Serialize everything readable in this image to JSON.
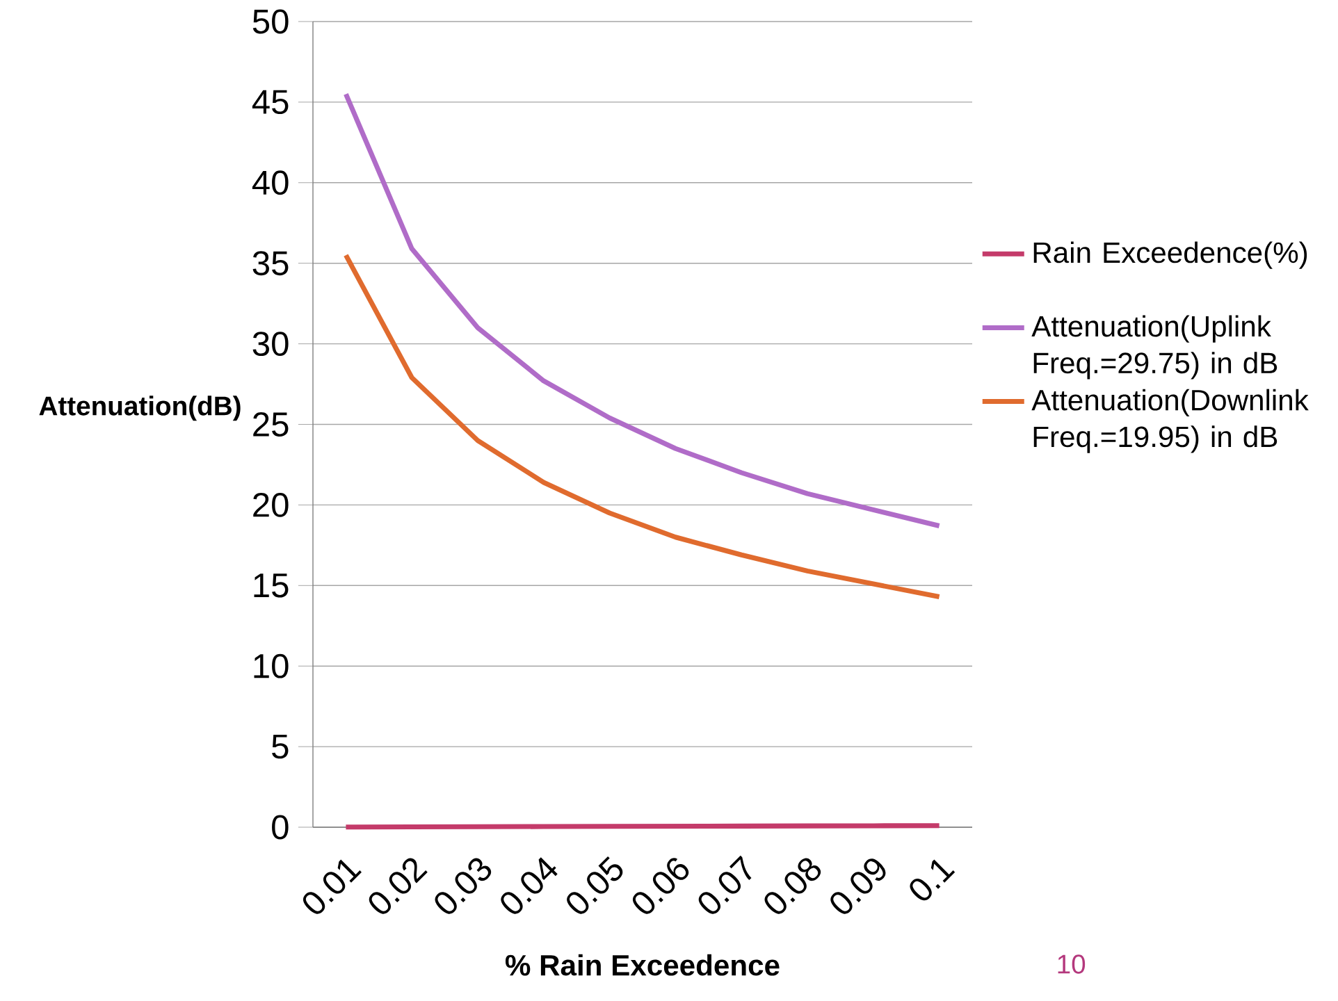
{
  "chart_data": {
    "type": "line",
    "xlabel": "% Rain Exceedence",
    "ylabel": "Attenuation(dB)",
    "categories": [
      "0.01",
      "0.02",
      "0.03",
      "0.04",
      "0.05",
      "0.06",
      "0.07",
      "0.08",
      "0.09",
      "0.1"
    ],
    "series": [
      {
        "name": "Rain Exceedence(%)",
        "color": "#c43b6a",
        "values": [
          0.01,
          0.02,
          0.03,
          0.04,
          0.05,
          0.06,
          0.07,
          0.08,
          0.09,
          0.1
        ]
      },
      {
        "name": "Attenuation(Uplink Freq.=29.75) in dB",
        "color": "#b06cc8",
        "values": [
          45.5,
          35.9,
          31.0,
          27.7,
          25.4,
          23.5,
          22.0,
          20.7,
          19.7,
          18.7
        ]
      },
      {
        "name": "Attenuation(Downlink Freq.=19.95) in dB",
        "color": "#e06b2e",
        "values": [
          35.5,
          27.9,
          24.0,
          21.4,
          19.5,
          18.0,
          16.9,
          15.9,
          15.1,
          14.3
        ]
      }
    ],
    "ylim": [
      0,
      50
    ],
    "yticks": [
      0,
      5,
      10,
      15,
      20,
      25,
      30,
      35,
      40,
      45,
      50
    ],
    "grid": "y",
    "legend": "right",
    "marker": "none",
    "annotations": [
      "10"
    ]
  }
}
